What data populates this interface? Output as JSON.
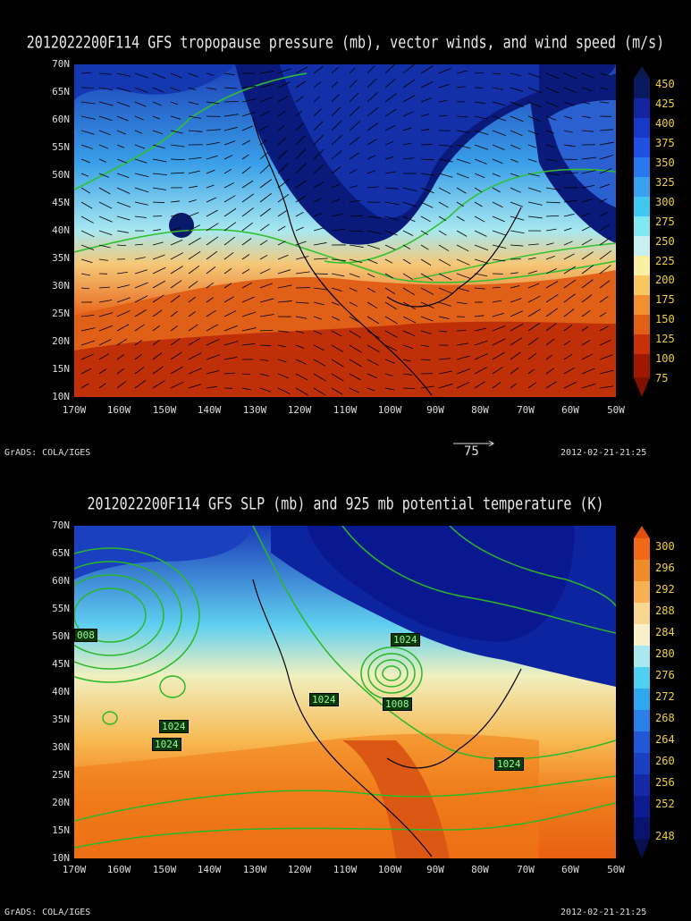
{
  "panels": [
    {
      "title": "2012022200F114 GFS tropopause pressure (mb), vector winds, and wind speed (m/s)",
      "colorbar": [
        "450",
        "425",
        "400",
        "375",
        "350",
        "325",
        "300",
        "275",
        "250",
        "225",
        "200",
        "175",
        "150",
        "125",
        "100",
        "75"
      ],
      "vector_ref_label": "75"
    },
    {
      "title": "2012022200F114 GFS SLP (mb) and 925 mb potential temperature (K)",
      "colorbar": [
        "300",
        "296",
        "292",
        "288",
        "284",
        "280",
        "276",
        "272",
        "268",
        "264",
        "260",
        "256",
        "252",
        "248"
      ],
      "contour_labels": [
        "008",
        "1024",
        "1024",
        "1024",
        "1024",
        "1008",
        "1024"
      ]
    }
  ],
  "lat_labels": [
    "70N",
    "65N",
    "60N",
    "55N",
    "50N",
    "45N",
    "40N",
    "35N",
    "30N",
    "25N",
    "20N",
    "15N",
    "10N"
  ],
  "lon_labels": [
    "170W",
    "160W",
    "150W",
    "140W",
    "130W",
    "120W",
    "110W",
    "100W",
    "90W",
    "80W",
    "70W",
    "60W",
    "50W"
  ],
  "footer_left": "GrADS: COLA/IGES",
  "footer_right": "2012-02-21-21:25"
}
